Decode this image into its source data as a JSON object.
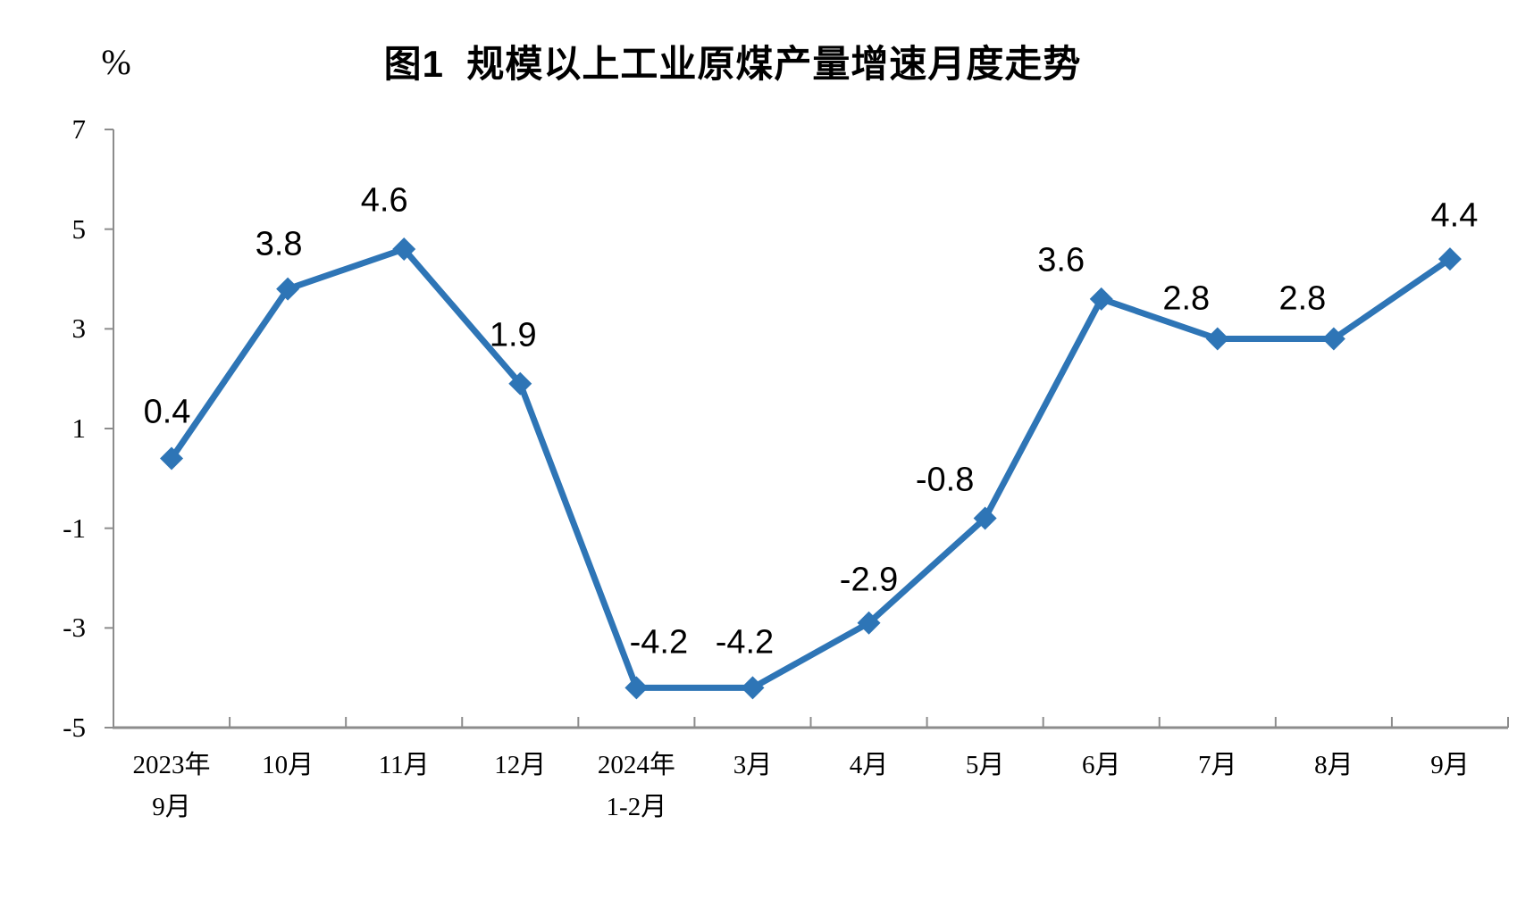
{
  "chart": {
    "title": "图1  规模以上工业原煤产量增速月度走势",
    "y_unit": "%"
  },
  "chart_data": {
    "type": "line",
    "title": "图1  规模以上工业原煤产量增速月度走势",
    "xlabel": "",
    "ylabel": "%",
    "categories": [
      "2023年\n9月",
      "10月",
      "11月",
      "12月",
      "2024年\n1-2月",
      "3月",
      "4月",
      "5月",
      "6月",
      "7月",
      "8月",
      "9月"
    ],
    "values": [
      0.4,
      3.8,
      4.6,
      1.9,
      -4.2,
      -4.2,
      -2.9,
      -0.8,
      3.6,
      2.8,
      2.8,
      4.4
    ],
    "data_labels": [
      "0.4",
      "3.8",
      "4.6",
      "1.9",
      "-4.2",
      "-4.2",
      "-2.9",
      "-0.8",
      "3.6",
      "2.8",
      "2.8",
      "4.4"
    ],
    "yticks": [
      7,
      5,
      3,
      1,
      -1,
      -3,
      -5
    ],
    "ylim": [
      -5,
      7
    ],
    "ytick_step": 2,
    "grid": false,
    "legend_position": "none",
    "marker_shape": "diamond",
    "line_color": "#2E75B6",
    "axis_color": "#8C8C8C",
    "text_color": "#000000"
  }
}
